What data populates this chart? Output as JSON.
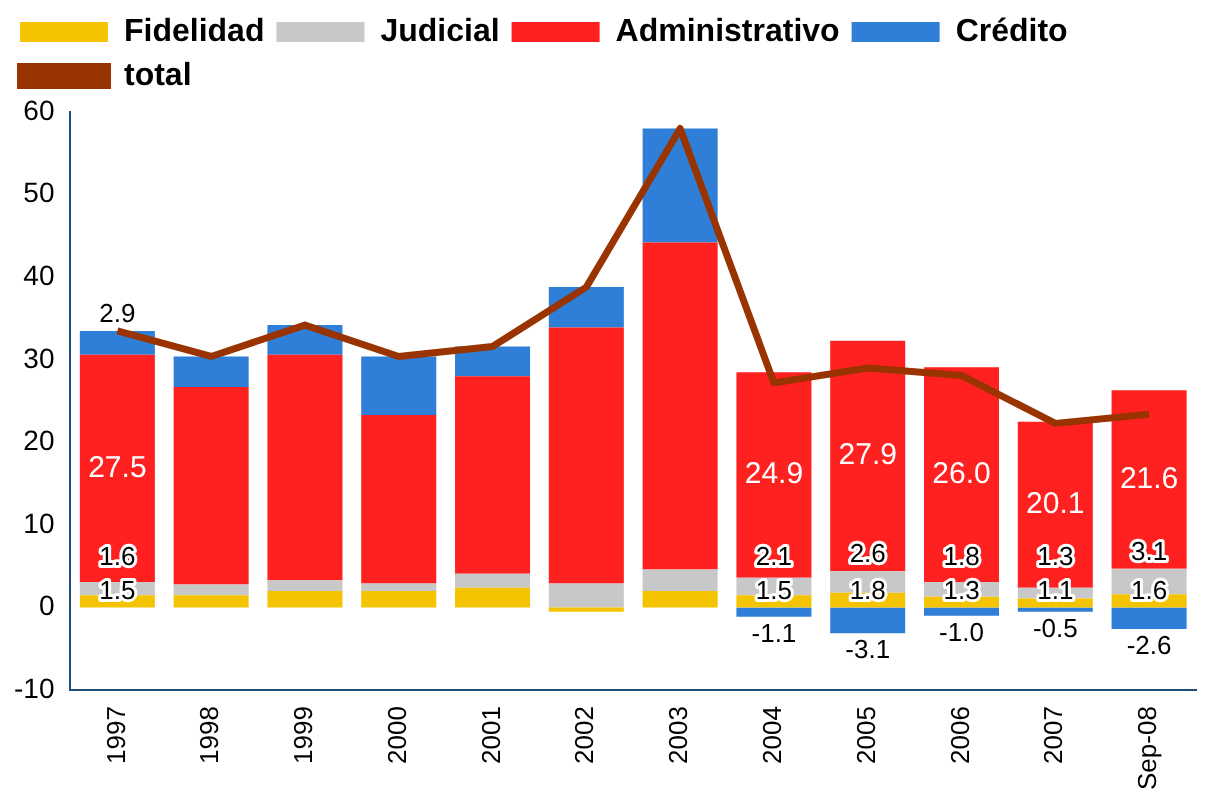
{
  "chart_data": {
    "type": "bar",
    "stacked": true,
    "legend": "top",
    "grid": false,
    "marker": "none",
    "categories": [
      "1997",
      "1998",
      "1999",
      "2000",
      "2001",
      "2002",
      "2003",
      "2004",
      "2005",
      "2006",
      "2007",
      "Sep-08"
    ],
    "ylim": [
      -10,
      60
    ],
    "yticks": [
      -10,
      0,
      10,
      20,
      30,
      40,
      50,
      60
    ],
    "series": [
      {
        "name": "Fidelidad",
        "color": "#f5c400",
        "values": [
          1.5,
          1.5,
          2.0,
          2.0,
          2.4,
          -0.5,
          2.0,
          1.5,
          1.8,
          1.3,
          1.1,
          1.6
        ],
        "value_labels": [
          "1.5",
          null,
          null,
          null,
          null,
          null,
          null,
          "1.5",
          "1.8",
          "1.3",
          "1.1",
          "1.6"
        ]
      },
      {
        "name": "Judicial",
        "color": "#c8c8c8",
        "values": [
          1.6,
          1.3,
          1.3,
          0.9,
          1.7,
          2.9,
          2.6,
          2.1,
          2.6,
          1.8,
          1.3,
          3.1
        ],
        "value_labels": [
          "1.6",
          null,
          null,
          null,
          null,
          null,
          null,
          "2.1",
          "2.6",
          "1.8",
          "1.3",
          "3.1"
        ]
      },
      {
        "name": "Administrativo",
        "color": "#ff2020",
        "values": [
          27.5,
          23.9,
          27.3,
          20.4,
          23.9,
          31.0,
          39.6,
          24.9,
          27.9,
          26.0,
          20.1,
          21.6
        ],
        "value_labels": [
          "27.5",
          null,
          null,
          null,
          null,
          null,
          null,
          "24.9",
          "27.9",
          "26.0",
          "20.1",
          "21.6"
        ]
      },
      {
        "name": "Crédito",
        "color": "#2f7fd8",
        "values": [
          2.9,
          3.7,
          3.6,
          7.1,
          3.6,
          4.9,
          13.8,
          -1.1,
          -3.1,
          -1.0,
          -0.5,
          -2.6
        ],
        "value_labels": [
          "2.9",
          null,
          null,
          null,
          null,
          null,
          null,
          "-1.1",
          "-3.1",
          "-1.0",
          "-0.5",
          "-2.6"
        ]
      },
      {
        "name": "total",
        "type": "line",
        "color": "#993300",
        "values": [
          33.5,
          30.4,
          34.2,
          30.4,
          31.6,
          38.8,
          58.0,
          27.2,
          29.0,
          28.1,
          22.3,
          23.4
        ]
      }
    ]
  }
}
